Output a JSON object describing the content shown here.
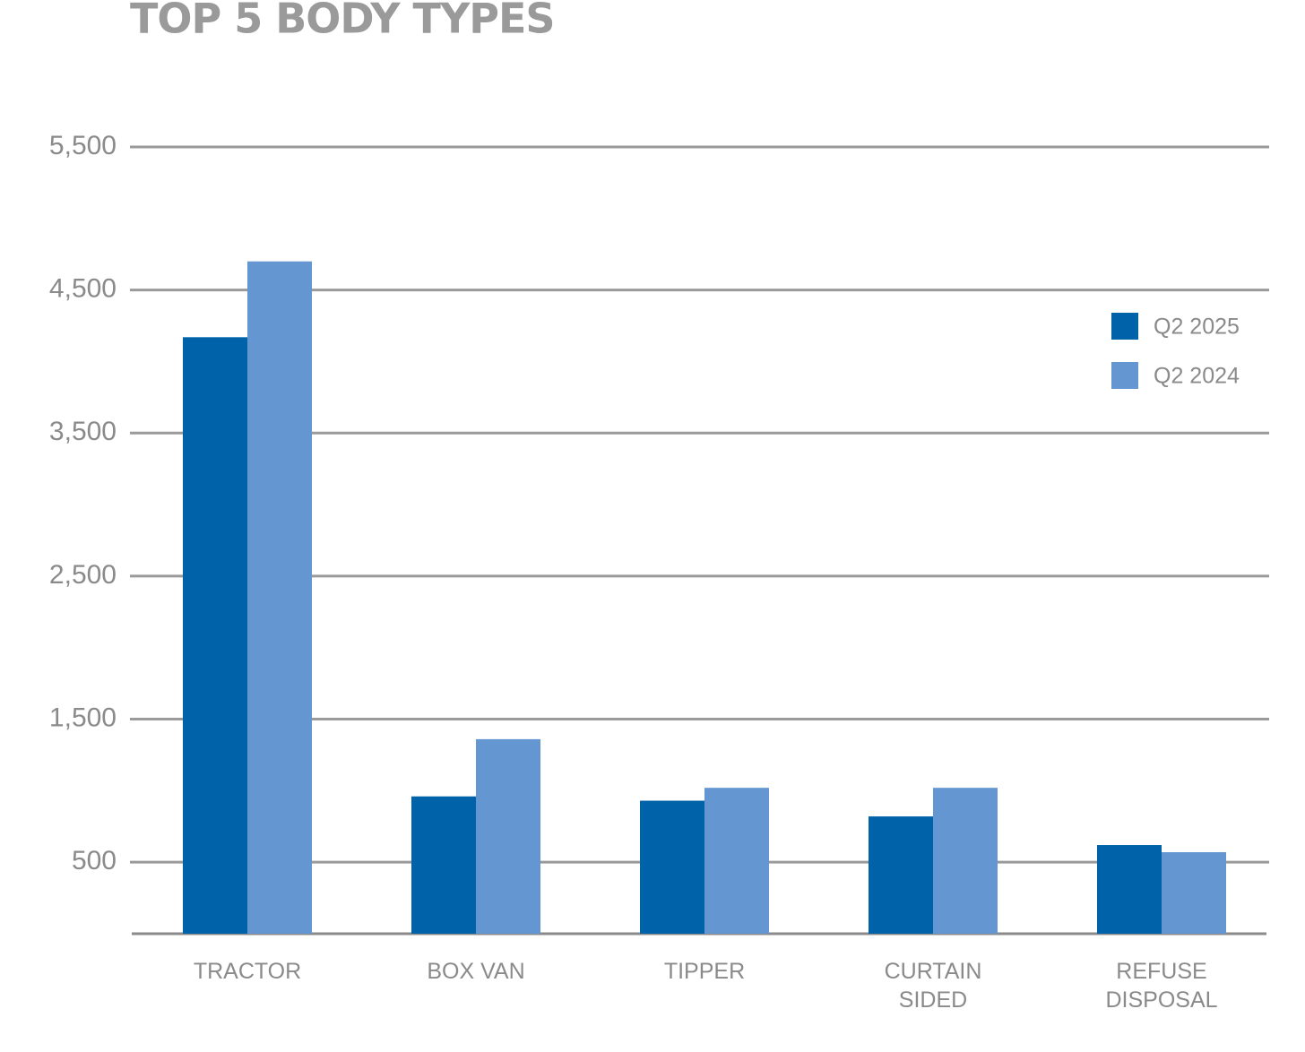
{
  "chart_data": {
    "type": "bar",
    "title": "TOP 5 BODY TYPES",
    "categories": [
      "TRACTOR",
      "BOX VAN",
      "TIPPER",
      "CURTAIN\nSIDED",
      "REFUSE\nDISPOSAL"
    ],
    "series": [
      {
        "name": "Q2 2025",
        "color": "#0062a8",
        "values": [
          4170,
          960,
          930,
          820,
          620
        ]
      },
      {
        "name": "Q2 2024",
        "color": "#6497d1",
        "values": [
          4700,
          1360,
          1020,
          1020,
          570
        ]
      }
    ],
    "ylim": [
      0,
      5500
    ],
    "yticks": [
      500,
      {
        "value": 1500,
        "label": "1,500"
      },
      {
        "value": 2500,
        "label": "2,500"
      },
      {
        "value": 3500,
        "label": "3,500"
      },
      {
        "value": 4500,
        "label": "4,500"
      },
      {
        "value": 5500,
        "label": "5,500"
      }
    ],
    "grid": true,
    "legend": "upper-right"
  }
}
